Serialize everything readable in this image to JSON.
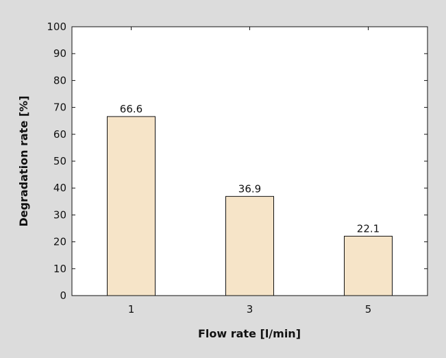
{
  "chart_data": {
    "type": "bar",
    "categories": [
      "1",
      "3",
      "5"
    ],
    "values": [
      66.6,
      36.9,
      22.1
    ],
    "value_labels": [
      "66.6",
      "36.9",
      "22.1"
    ],
    "title": "",
    "xlabel": "Flow rate  [l/min]",
    "ylabel": "Degradation rate  [%]",
    "ylim": [
      0,
      100
    ],
    "yticks": [
      0,
      10,
      20,
      30,
      40,
      50,
      60,
      70,
      80,
      90,
      100
    ],
    "grid": false,
    "legend": "none"
  },
  "colors": {
    "background": "#dcdcdc",
    "plot_area": "#ffffff",
    "bar_fill": "#f6e4c8",
    "bar_stroke": "#111111",
    "axis": "#111111"
  }
}
